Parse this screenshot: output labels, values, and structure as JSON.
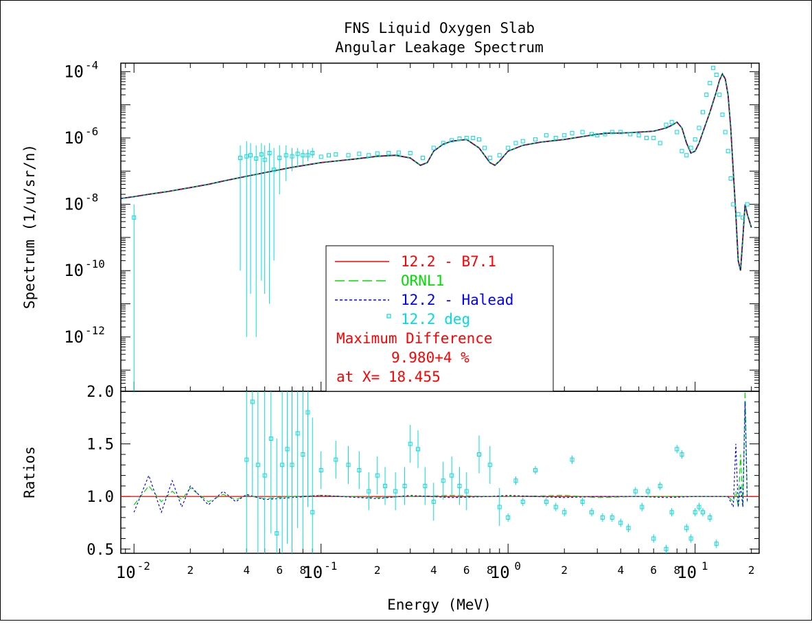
{
  "chart_data": {
    "type": "line",
    "title": "FNS Liquid Oxygen Slab",
    "subtitle": "Angular Leakage Spectrum",
    "xlabel": "Energy (MeV)",
    "ylabel_top": "Spectrum (1/u/sr/n)",
    "ylabel_bottom": "Ratios",
    "x_scale": "log",
    "xlim": [
      0.0085,
      22
    ],
    "top_y_scale": "log",
    "top_ylim": [
      2.3e-14,
      0.00018
    ],
    "bottom_ylim": [
      0.46,
      2.0
    ],
    "x_ticks_major": [
      {
        "base": "10",
        "exp": "-2",
        "value": 0.01
      },
      {
        "base": "10",
        "exp": "-1",
        "value": 0.1
      },
      {
        "base": "10",
        "exp": "0",
        "value": 1
      },
      {
        "base": "10",
        "exp": "1",
        "value": 10
      }
    ],
    "x_ticks_minor": [
      {
        "label": "2",
        "value": 0.02
      },
      {
        "label": "4",
        "value": 0.04
      },
      {
        "label": "6",
        "value": 0.06
      },
      {
        "label": "8",
        "value": 0.08
      },
      {
        "label": "2",
        "value": 0.2
      },
      {
        "label": "4",
        "value": 0.4
      },
      {
        "label": "6",
        "value": 0.6
      },
      {
        "label": "8",
        "value": 0.8
      },
      {
        "label": "2",
        "value": 2
      },
      {
        "label": "4",
        "value": 4
      },
      {
        "label": "6",
        "value": 6
      },
      {
        "label": "8",
        "value": 8
      },
      {
        "label": "2",
        "value": 20
      }
    ],
    "top_y_ticks": [
      {
        "base": "10",
        "exp": "-4",
        "value": 0.0001
      },
      {
        "base": "10",
        "exp": "-6",
        "value": 1e-06
      },
      {
        "base": "10",
        "exp": "-8",
        "value": 1e-08
      },
      {
        "base": "10",
        "exp": "-10",
        "value": 1e-10
      },
      {
        "base": "10",
        "exp": "-12",
        "value": 1e-12
      }
    ],
    "bottom_y_ticks": [
      {
        "label": "2.0",
        "value": 2.0
      },
      {
        "label": "1.5",
        "value": 1.5
      },
      {
        "label": "1.0",
        "value": 1.0
      },
      {
        "label": "0.5",
        "value": 0.5
      }
    ],
    "legend": {
      "placement": "center",
      "entries": [
        {
          "label": "12.2 - B7.1",
          "color": "#ff0000",
          "style": "solid"
        },
        {
          "label": "ORNL1",
          "color": "#00dd00",
          "style": "dash"
        },
        {
          "label": "12.2 - Halead",
          "color": "#0000ff",
          "style": "dot"
        },
        {
          "label": "12.2 deg",
          "color": "#00dddd",
          "style": "marker"
        }
      ],
      "note_lines": [
        "Maximum Difference",
        "9.980+4 %",
        "at X= 18.455"
      ],
      "note_color": "#ff0000"
    },
    "spectrum_curve": {
      "x": [
        0.0085,
        0.01,
        0.012,
        0.015,
        0.02,
        0.025,
        0.03,
        0.04,
        0.05,
        0.07,
        0.1,
        0.15,
        0.2,
        0.25,
        0.3,
        0.34,
        0.37,
        0.4,
        0.45,
        0.5,
        0.6,
        0.7,
        0.8,
        0.85,
        0.9,
        1.0,
        1.2,
        1.5,
        2.0,
        2.5,
        3.0,
        3.5,
        4.0,
        5.0,
        6.0,
        7.0,
        7.5,
        8.0,
        8.5,
        9.0,
        9.5,
        10.0,
        10.5,
        11.0,
        12.0,
        13.0,
        13.5,
        14.0,
        14.5,
        15.0,
        15.5,
        16.0,
        16.5,
        17.0,
        17.5,
        18.0,
        18.5,
        19.0,
        20.0
      ],
      "y": [
        1.5e-08,
        1.7e-08,
        2e-08,
        2.4e-08,
        3.2e-08,
        4e-08,
        5e-08,
        7e-08,
        9e-08,
        1.3e-07,
        1.8e-07,
        2.3e-07,
        2.8e-07,
        3e-07,
        2.5e-07,
        1.5e-07,
        1.8e-07,
        4e-07,
        6.5e-07,
        8e-07,
        9e-07,
        5e-07,
        1.8e-07,
        1.5e-07,
        2e-07,
        4e-07,
        6e-07,
        7.5e-07,
        9e-07,
        1.1e-06,
        1.3e-06,
        1.4e-06,
        1.4e-06,
        1.5e-06,
        1.6e-06,
        2e-06,
        2.4e-06,
        3e-06,
        2e-06,
        7e-07,
        3.5e-07,
        4e-07,
        7e-07,
        1.5e-06,
        6e-06,
        2.5e-05,
        5.5e-05,
        8.5e-05,
        6e-05,
        2e-05,
        2e-06,
        1e-07,
        5e-09,
        2e-10,
        1e-10,
        1e-09,
        1e-08,
        5e-09,
        2e-09
      ]
    },
    "measured_points": {
      "x": [
        0.01,
        0.037,
        0.04,
        0.042,
        0.045,
        0.048,
        0.05,
        0.053,
        0.056,
        0.06,
        0.065,
        0.07,
        0.075,
        0.08,
        0.085,
        0.09,
        0.1,
        0.11,
        0.12,
        0.14,
        0.16,
        0.18,
        0.2,
        0.23,
        0.26,
        0.3,
        0.35,
        0.4,
        0.45,
        0.5,
        0.55,
        0.6,
        0.65,
        0.7,
        0.75,
        0.8,
        0.9,
        1.0,
        1.1,
        1.2,
        1.4,
        1.6,
        1.8,
        2.0,
        2.2,
        2.5,
        2.8,
        3.0,
        3.3,
        3.6,
        4.0,
        4.5,
        5.0,
        5.5,
        6.0,
        6.5,
        7.0,
        7.5,
        8.0,
        8.5,
        9.0,
        9.5,
        10.0,
        10.5,
        11.0,
        11.5,
        12.0,
        12.5,
        13.0,
        13.5,
        14.0,
        14.5,
        15.0,
        15.5,
        16.0,
        17.0,
        18.0,
        19.0
      ],
      "y": [
        4e-09,
        2.5e-07,
        2.8e-07,
        3e-07,
        2.4e-07,
        3.2e-07,
        2.2e-07,
        3.5e-07,
        1.1e-07,
        2.5e-07,
        3e-07,
        2.8e-07,
        3.3e-07,
        3e-07,
        3e-07,
        3.5e-07,
        2.7e-07,
        3e-07,
        3.2e-07,
        3e-07,
        3.3e-07,
        3e-07,
        3.4e-07,
        3.5e-07,
        3.6e-07,
        3.5e-07,
        2.5e-07,
        5e-07,
        7e-07,
        8.5e-07,
        9.5e-07,
        1e-06,
        1e-06,
        9e-07,
        5e-07,
        2.5e-07,
        3e-07,
        5e-07,
        7e-07,
        8e-07,
        9e-07,
        1.2e-06,
        1e-06,
        1.2e-06,
        1.4e-06,
        1.5e-06,
        1.3e-06,
        1.2e-06,
        1.3e-06,
        1.5e-06,
        1.5e-06,
        1.3e-06,
        1.2e-06,
        1e-06,
        1e-06,
        7e-07,
        2.5e-06,
        3e-06,
        1.5e-06,
        4e-07,
        3e-07,
        5e-07,
        9e-07,
        2e-06,
        6e-06,
        2e-05,
        4.5e-05,
        0.00013,
        8e-05,
        2e-05,
        5e-06,
        1.5e-06,
        4e-07,
        6e-08,
        1e-08,
        5e-09,
        4e-09,
        1e-08
      ],
      "err_low": [
        1e-14,
        1e-10,
        1e-12,
        2e-11,
        1e-12,
        5e-11,
        2e-11,
        1e-11,
        2e-10,
        2e-08,
        5e-08,
        1e-07,
        1.5e-07,
        1.5e-07,
        2e-07,
        2.5e-07
      ],
      "err_high": [
        1e-08,
        6e-07,
        8e-07,
        7e-07,
        6e-07,
        7e-07,
        6e-07,
        7e-07,
        5e-07,
        6e-07,
        6e-07,
        5e-07,
        5e-07,
        4.5e-07,
        4.5e-07,
        5e-07
      ]
    },
    "ratio_curves": {
      "x": [
        0.01,
        0.012,
        0.014,
        0.016,
        0.018,
        0.02,
        0.025,
        0.03,
        0.035,
        0.04,
        0.05,
        0.07,
        0.1,
        0.2,
        0.3,
        0.5,
        0.8,
        1.0,
        2.0,
        3.0,
        5.0,
        7.0,
        10.0,
        12.0,
        14.0,
        15.0,
        16.0,
        16.5,
        17.0,
        17.5,
        18.0,
        18.5,
        19.0
      ],
      "ornl1": [
        0.92,
        1.1,
        0.95,
        1.05,
        0.97,
        1.08,
        0.95,
        1.02,
        0.97,
        1.01,
        0.98,
        1.0,
        1.01,
        0.99,
        1.0,
        1.01,
        1.0,
        1.0,
        1.01,
        0.99,
        1.0,
        1.0,
        1.0,
        1.0,
        1.0,
        1.0,
        0.95,
        1.05,
        0.9,
        1.4,
        0.9,
        2.0,
        0.95
      ],
      "halead": [
        0.85,
        1.2,
        0.85,
        1.15,
        0.9,
        1.1,
        0.92,
        1.05,
        0.95,
        1.02,
        0.97,
        0.99,
        1.01,
        0.98,
        1.01,
        0.99,
        1.0,
        1.01,
        0.99,
        1.0,
        1.0,
        0.99,
        1.0,
        1.0,
        1.0,
        1.0,
        0.9,
        1.5,
        0.9,
        1.1,
        0.9,
        1.9,
        0.95
      ]
    },
    "ratio_points": {
      "x": [
        0.04,
        0.043,
        0.046,
        0.05,
        0.054,
        0.058,
        0.062,
        0.066,
        0.07,
        0.075,
        0.08,
        0.085,
        0.09,
        0.1,
        0.12,
        0.14,
        0.16,
        0.18,
        0.2,
        0.22,
        0.25,
        0.28,
        0.3,
        0.33,
        0.36,
        0.4,
        0.45,
        0.5,
        0.55,
        0.6,
        0.7,
        0.8,
        0.9,
        1.0,
        1.1,
        1.2,
        1.4,
        1.6,
        1.8,
        2.0,
        2.2,
        2.5,
        2.8,
        3.2,
        3.6,
        4.0,
        4.4,
        4.8,
        5.2,
        5.6,
        6.0,
        6.5,
        7.0,
        7.5,
        8.0,
        8.5,
        9.0,
        9.5,
        10.0,
        10.5,
        11.0,
        12.0,
        13.0
      ],
      "y": [
        1.35,
        1.9,
        1.3,
        1.2,
        1.55,
        0.65,
        1.3,
        1.45,
        1.3,
        1.6,
        1.4,
        1.8,
        0.85,
        1.25,
        1.35,
        1.3,
        1.25,
        1.05,
        1.2,
        1.1,
        1.05,
        1.1,
        1.5,
        1.45,
        1.1,
        0.95,
        1.15,
        1.2,
        1.1,
        1.05,
        1.4,
        1.3,
        0.9,
        0.8,
        1.15,
        0.95,
        1.25,
        0.95,
        0.9,
        0.85,
        1.35,
        0.95,
        0.85,
        0.8,
        0.8,
        0.75,
        0.7,
        1.05,
        0.9,
        1.05,
        0.6,
        1.1,
        0.5,
        0.85,
        1.45,
        1.4,
        0.7,
        0.6,
        0.85,
        0.9,
        0.85,
        0.8,
        0.55
      ]
    }
  }
}
